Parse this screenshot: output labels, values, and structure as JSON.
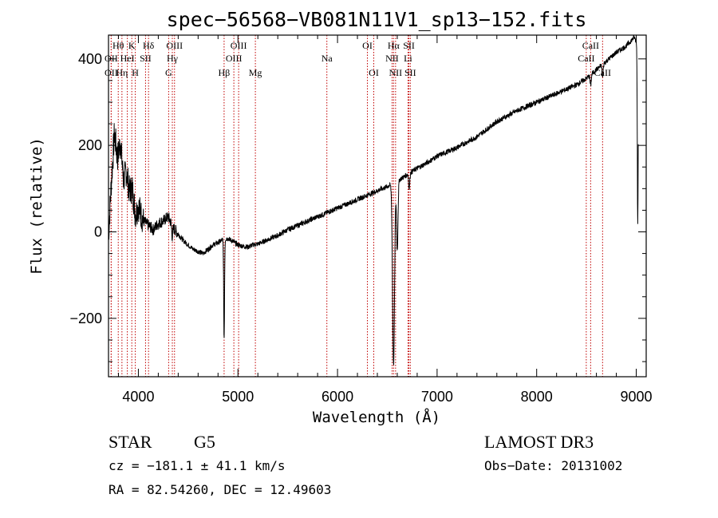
{
  "chart_data": {
    "type": "line",
    "title": "spec−56568−VB081N11V1_sp13−152.fits",
    "xlabel": "Wavelength (Å)",
    "ylabel": "Flux (relative)",
    "xlim": [
      3700,
      9100
    ],
    "ylim": [
      -335,
      455
    ],
    "x_ticks": [
      {
        "value": 4000,
        "label": "4000"
      },
      {
        "value": 5000,
        "label": "5000"
      },
      {
        "value": 6000,
        "label": "6000"
      },
      {
        "value": 7000,
        "label": "7000"
      },
      {
        "value": 8000,
        "label": "8000"
      },
      {
        "value": 9000,
        "label": "9000"
      }
    ],
    "y_ticks": [
      {
        "value": -200,
        "label": "−200"
      },
      {
        "value": 0,
        "label": "0"
      },
      {
        "value": 200,
        "label": "200"
      },
      {
        "value": 400,
        "label": "400"
      }
    ],
    "series": [
      {
        "name": "flux",
        "anchors": [
          [
            3700,
            -10
          ],
          [
            3730,
            120
          ],
          [
            3760,
            230
          ],
          [
            3790,
            170
          ],
          [
            3820,
            210
          ],
          [
            3850,
            120
          ],
          [
            3880,
            140
          ],
          [
            3910,
            95
          ],
          [
            3940,
            100
          ],
          [
            3970,
            40
          ],
          [
            4000,
            60
          ],
          [
            4050,
            25
          ],
          [
            4100,
            15
          ],
          [
            4150,
            5
          ],
          [
            4200,
            20
          ],
          [
            4250,
            25
          ],
          [
            4300,
            35
          ],
          [
            4350,
            10
          ],
          [
            4400,
            -5
          ],
          [
            4450,
            -20
          ],
          [
            4500,
            -30
          ],
          [
            4550,
            -40
          ],
          [
            4600,
            -45
          ],
          [
            4650,
            -50
          ],
          [
            4700,
            -40
          ],
          [
            4750,
            -30
          ],
          [
            4800,
            -25
          ],
          [
            4850,
            -18
          ],
          [
            4900,
            -15
          ],
          [
            4950,
            -22
          ],
          [
            5000,
            -30
          ],
          [
            5050,
            -33
          ],
          [
            5100,
            -35
          ],
          [
            5150,
            -30
          ],
          [
            5200,
            -28
          ],
          [
            5300,
            -18
          ],
          [
            5400,
            -8
          ],
          [
            5500,
            5
          ],
          [
            5600,
            15
          ],
          [
            5700,
            25
          ],
          [
            5800,
            35
          ],
          [
            5900,
            45
          ],
          [
            6000,
            55
          ],
          [
            6100,
            65
          ],
          [
            6200,
            75
          ],
          [
            6300,
            85
          ],
          [
            6400,
            95
          ],
          [
            6500,
            105
          ],
          [
            6550,
            110
          ],
          [
            6650,
            125
          ],
          [
            6750,
            140
          ],
          [
            6900,
            160
          ],
          [
            7000,
            175
          ],
          [
            7200,
            195
          ],
          [
            7400,
            220
          ],
          [
            7600,
            255
          ],
          [
            7800,
            280
          ],
          [
            8000,
            300
          ],
          [
            8200,
            320
          ],
          [
            8400,
            340
          ],
          [
            8500,
            355
          ],
          [
            8600,
            375
          ],
          [
            8700,
            395
          ],
          [
            8800,
            415
          ],
          [
            8900,
            430
          ],
          [
            8980,
            450
          ],
          [
            9000,
            440
          ]
        ],
        "absorption_dips": [
          {
            "x": 4861,
            "depth": 230,
            "width": 6
          },
          {
            "x": 4340,
            "depth": 25,
            "width": 8
          },
          {
            "x": 6563,
            "depth": 420,
            "width": 14
          },
          {
            "x": 6600,
            "depth": 160,
            "width": 10
          },
          {
            "x": 6720,
            "depth": 35,
            "width": 8
          },
          {
            "x": 8542,
            "depth": 25,
            "width": 8
          },
          {
            "x": 8662,
            "depth": 30,
            "width": 8
          },
          {
            "x": 9015,
            "depth": 420,
            "width": 6
          }
        ]
      }
    ],
    "reference_lines": [
      {
        "label": "Hθ",
        "wavelength": 3798,
        "row": 1
      },
      {
        "label": "OII",
        "wavelength": 3727,
        "row": 2
      },
      {
        "label": "OII",
        "wavelength": 3727,
        "row": 3
      },
      {
        "label": "Hη",
        "wavelength": 3835,
        "row": 3
      },
      {
        "label": "K",
        "wavelength": 3934,
        "row": 1
      },
      {
        "label": "HeI",
        "wavelength": 3889,
        "row": 2
      },
      {
        "label": "H",
        "wavelength": 3969,
        "row": 3
      },
      {
        "label": "Hδ",
        "wavelength": 4102,
        "row": 1
      },
      {
        "label": "SII",
        "wavelength": 4072,
        "row": 2
      },
      {
        "label": "OIII",
        "wavelength": 4363,
        "row": 1
      },
      {
        "label": "Hγ",
        "wavelength": 4341,
        "row": 2
      },
      {
        "label": "G",
        "wavelength": 4304,
        "row": 3
      },
      {
        "label": "Hβ",
        "wavelength": 4861,
        "row": 3
      },
      {
        "label": "OIII",
        "wavelength": 5007,
        "row": 1
      },
      {
        "label": "OIII",
        "wavelength": 4959,
        "row": 2
      },
      {
        "label": "Mg",
        "wavelength": 5175,
        "row": 3
      },
      {
        "label": "Na",
        "wavelength": 5893,
        "row": 2
      },
      {
        "label": "OI",
        "wavelength": 6300,
        "row": 1
      },
      {
        "label": "OI",
        "wavelength": 6364,
        "row": 3
      },
      {
        "label": "Hα",
        "wavelength": 6563,
        "row": 1
      },
      {
        "label": "NII",
        "wavelength": 6548,
        "row": 2
      },
      {
        "label": "NII",
        "wavelength": 6583,
        "row": 3
      },
      {
        "label": "SII",
        "wavelength": 6717,
        "row": 1
      },
      {
        "label": "Li",
        "wavelength": 6708,
        "row": 2
      },
      {
        "label": "SII",
        "wavelength": 6731,
        "row": 3
      },
      {
        "label": "CaII",
        "wavelength": 8542,
        "row": 1
      },
      {
        "label": "CaII",
        "wavelength": 8498,
        "row": 2
      },
      {
        "label": "CaII",
        "wavelength": 8662,
        "row": 3
      }
    ],
    "colors": {
      "spectrum": "#000000",
      "reference_line": "#c00000",
      "axes": "#000000"
    }
  },
  "info": {
    "class": "STAR",
    "subclass": "G5",
    "survey": "LAMOST DR3",
    "cz": "cz = −181.1 ± 41.1 km/s",
    "obs_date": "Obs−Date: 20131002",
    "coords": "RA =  82.54260, DEC =  12.49603"
  }
}
